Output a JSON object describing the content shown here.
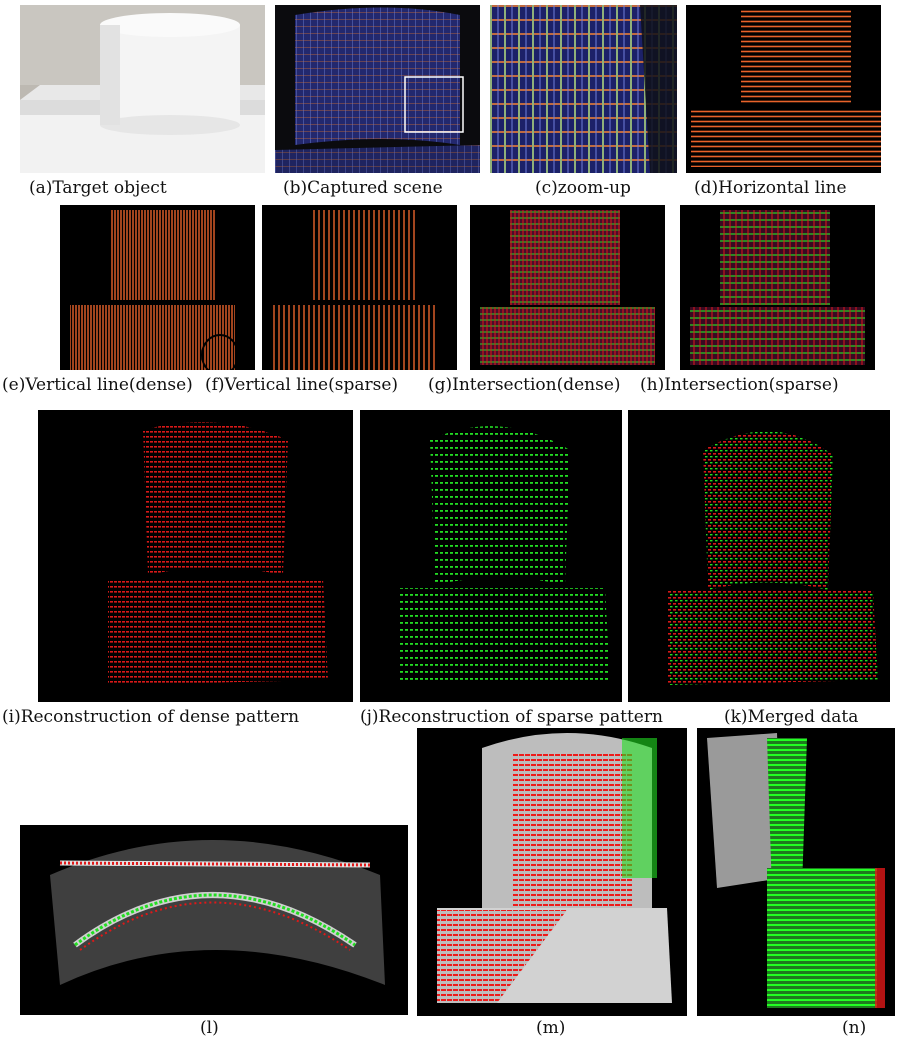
{
  "figure": {
    "captions": {
      "a": "(a)Target object",
      "b": "(b)Captured scene",
      "c": "(c)zoom-up",
      "d": "(d)Horizontal line",
      "e": "(e)Vertical line(dense)",
      "f": "(f)Vertical line(sparse)",
      "g": "(g)Intersection(dense)",
      "h": "(h)Intersection(sparse)",
      "i": "(i)Reconstruction of dense pattern",
      "j": "(j)Reconstruction of sparse pattern",
      "k": "(k)Merged data",
      "l": "(l)",
      "m": "(m)",
      "n": "(n)"
    },
    "colors": {
      "line_orange": "#e8622a",
      "dense_red": "#e01818",
      "sparse_green": "#22dd22",
      "grid_blue": "#2a2f8a",
      "background": "#000000"
    }
  }
}
